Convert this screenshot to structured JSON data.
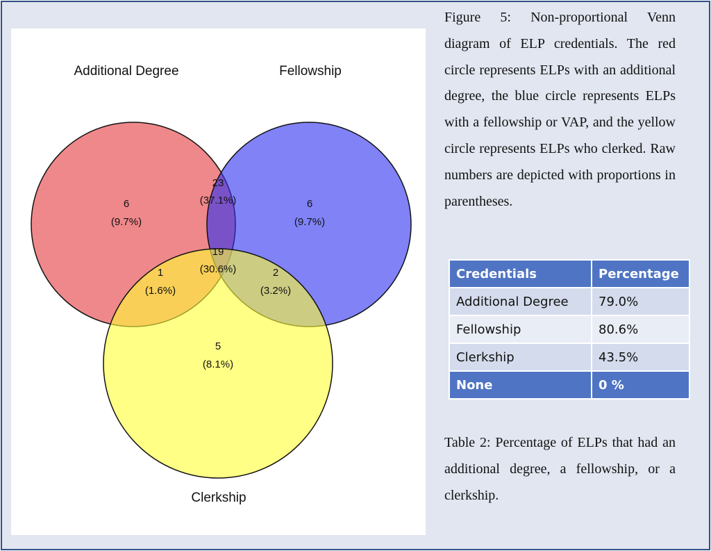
{
  "venn": {
    "set_labels": {
      "additional_degree": "Additional Degree",
      "fellowship": "Fellowship",
      "clerkship": "Clerkship"
    },
    "regions": {
      "degree_only": {
        "count": "6",
        "pct": "(9.7%)"
      },
      "degree_fellowship": {
        "count": "23",
        "pct": "(37.1%)"
      },
      "fellowship_only": {
        "count": "6",
        "pct": "(9.7%)"
      },
      "all_three": {
        "count": "19",
        "pct": "(30.6%)"
      },
      "degree_clerkship": {
        "count": "1",
        "pct": "(1.6%)"
      },
      "fellowship_clerkship": {
        "count": "2",
        "pct": "(3.2%)"
      },
      "clerkship_only": {
        "count": "5",
        "pct": "(8.1%)"
      }
    },
    "colors": {
      "additional_degree": "#e5393c",
      "fellowship": "#2b2ff0",
      "clerkship": "#ffff36"
    }
  },
  "figure_caption": "Figure 5: Non-proportional Venn diagram of ELP credentials. The red circle represents ELPs with an additional degree, the blue circle represents ELPs with a fellowship or VAP, and the yellow circle represents ELPs who clerked. Raw numbers are depicted with proportions in parentheses.",
  "table": {
    "headers": [
      "Credentials",
      "Percentage"
    ],
    "rows": [
      [
        "Additional Degree",
        "79.0%"
      ],
      [
        "Fellowship",
        "80.6%"
      ],
      [
        "Clerkship",
        "43.5%"
      ],
      [
        "None",
        "0 %"
      ]
    ]
  },
  "table_caption": "Table 2: Percentage of ELPs that had an additional degree, a fellowship, or a clerkship.",
  "colors": {
    "frame_border": "#2f4f86",
    "frame_background": "#e1e6f0",
    "table_header": "#4f74c4",
    "table_row": "#d4dbec",
    "table_row_alt": "#e9edf5"
  }
}
